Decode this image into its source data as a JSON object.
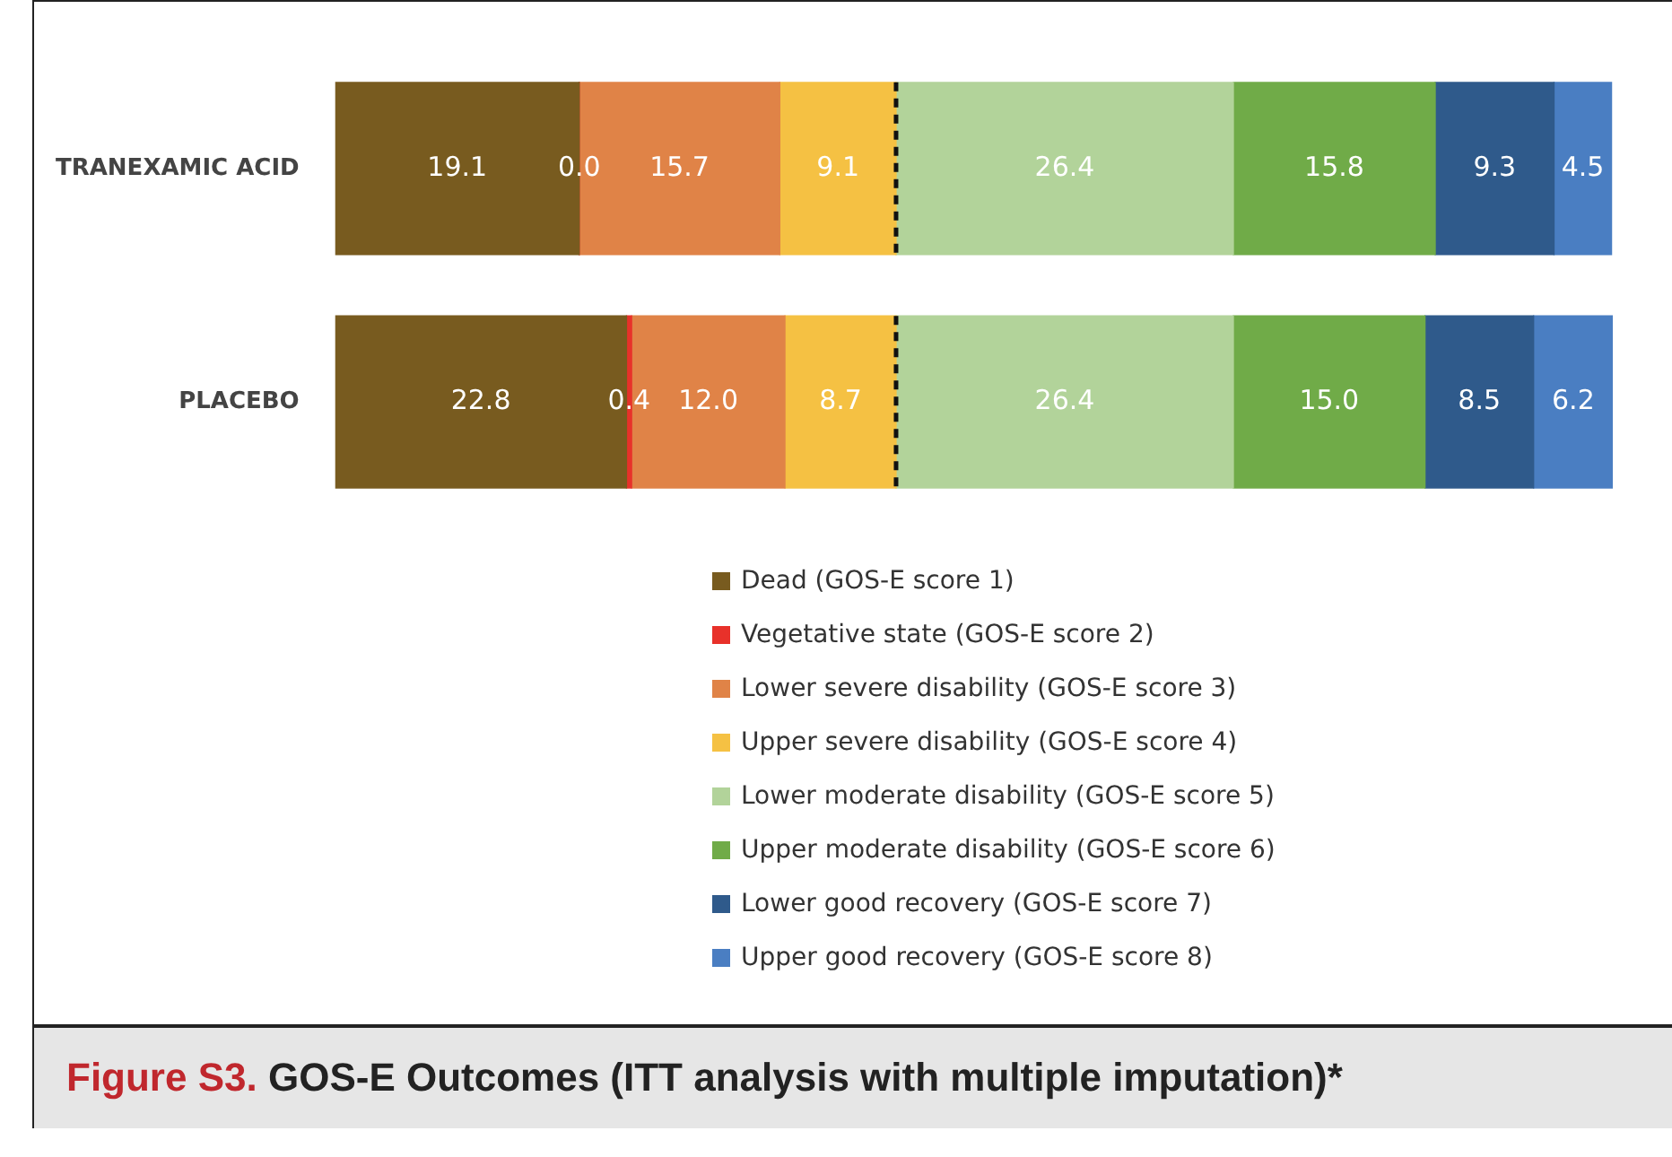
{
  "chart_data": {
    "type": "bar",
    "orientation": "horizontal",
    "stacked": true,
    "title": "Figure S3. GOS-E Outcomes (ITT analysis with multiple imputation)*",
    "categories": [
      "TRANEXAMIC ACID",
      "PLACEBO"
    ],
    "series": [
      {
        "name": "Dead (GOS-E score 1)",
        "color": "#785b1f",
        "values": [
          19.1,
          22.8
        ],
        "value_labels": [
          "19.1",
          "22.8"
        ]
      },
      {
        "name": "Vegetative state (GOS-E score 2)",
        "color": "#e8312a",
        "values": [
          0.0,
          0.4
        ],
        "value_labels": [
          "0.0",
          "0.4"
        ]
      },
      {
        "name": "Lower severe disability (GOS-E score 3)",
        "color": "#e08347",
        "values": [
          15.7,
          12.0
        ],
        "value_labels": [
          "15.7",
          "12.0"
        ]
      },
      {
        "name": "Upper severe disability (GOS-E score 4)",
        "color": "#f5c143",
        "values": [
          9.1,
          8.7
        ],
        "value_labels": [
          "9.1",
          "8.7"
        ]
      },
      {
        "name": "Lower moderate disability (GOS-E score 5)",
        "color": "#b2d39a",
        "values": [
          26.4,
          26.4
        ],
        "value_labels": [
          "26.4",
          "26.4"
        ]
      },
      {
        "name": "Upper moderate disability (GOS-E score 6)",
        "color": "#70ab48",
        "values": [
          15.8,
          15.0
        ],
        "value_labels": [
          "15.8",
          "15.0"
        ]
      },
      {
        "name": "Lower good recovery (GOS-E score 7)",
        "color": "#2f5a8b",
        "values": [
          9.3,
          8.5
        ],
        "value_labels": [
          "9.3",
          "8.5"
        ]
      },
      {
        "name": "Upper good recovery (GOS-E score 8)",
        "color": "#4a7ec2",
        "values": [
          4.5,
          6.2
        ],
        "value_labels": [
          "4.5",
          "6.2"
        ]
      }
    ],
    "ref_lines": [
      {
        "axis": "x",
        "value": 43.9,
        "line_style": "dashed",
        "color": "#111111"
      }
    ],
    "legend": "bottom",
    "grid": false,
    "tick_labels": "y"
  }
}
